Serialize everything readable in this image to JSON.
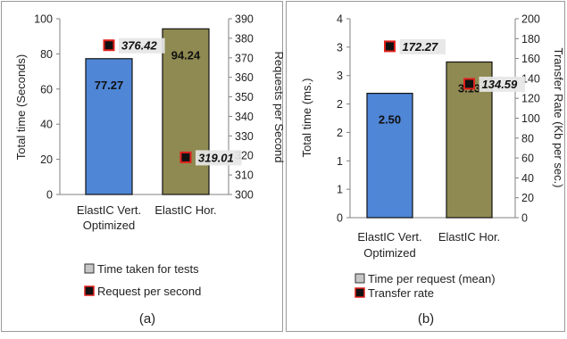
{
  "chart_data": [
    {
      "type": "bar",
      "caption": "(a)",
      "categories": [
        "ElastIC Vert. Optimized",
        "ElastIC Hor."
      ],
      "category_lines": [
        [
          "ElastIC Vert.",
          "Optimized"
        ],
        [
          "ElastIC Hor."
        ]
      ],
      "series": [
        {
          "name": "Time taken for tests",
          "axis": "left",
          "kind": "bar",
          "values": [
            77.27,
            94.24
          ],
          "labels": [
            "77.27",
            "94.24"
          ],
          "colors": [
            "#4f86d6",
            "#8f8a52"
          ]
        },
        {
          "name": "Request per second",
          "axis": "right",
          "kind": "point",
          "values": [
            376.42,
            319.01
          ],
          "labels": [
            "376.42",
            "319.01"
          ],
          "color": "#e0201b"
        }
      ],
      "ylabel": "Total time (Seconds)",
      "y2label": "Requests per Second",
      "ylim": [
        0,
        100
      ],
      "yticks": [
        "0",
        "20",
        "40",
        "60",
        "80",
        "100"
      ],
      "y2lim": [
        300,
        390
      ],
      "y2ticks": [
        "300",
        "310",
        "320",
        "330",
        "340",
        "350",
        "360",
        "370",
        "380",
        "390"
      ],
      "legend": {
        "position": "bottom",
        "entries": [
          "Time taken for tests",
          "Request per second"
        ]
      }
    },
    {
      "type": "bar",
      "caption": "(b)",
      "categories": [
        "ElastIC Vert. Optimized",
        "ElastIC Hor."
      ],
      "category_lines": [
        [
          "ElastIC Vert.",
          "Optimized"
        ],
        [
          "ElastIC Hor."
        ]
      ],
      "series": [
        {
          "name": "Time per request (mean)",
          "axis": "left",
          "kind": "bar",
          "values": [
            2.5,
            3.13
          ],
          "labels": [
            "2.50",
            "3.13"
          ],
          "colors": [
            "#4f86d6",
            "#8f8a52"
          ]
        },
        {
          "name": "Transfer rate",
          "axis": "right",
          "kind": "point",
          "values": [
            172.27,
            134.59
          ],
          "labels": [
            "172.27",
            "134.59"
          ],
          "color": "#e0201b"
        }
      ],
      "ylabel": "Total time (ms.)",
      "y2label": "Transfer Rate (Kb per sec.)",
      "ylim": [
        0,
        4
      ],
      "yticks": [
        "0",
        "1",
        "1",
        "2",
        "2",
        "3",
        "3",
        "4"
      ],
      "y2lim": [
        0,
        200
      ],
      "y2ticks": [
        "0",
        "20",
        "40",
        "60",
        "80",
        "100",
        "120",
        "140",
        "160",
        "180",
        "200"
      ],
      "legend": {
        "position": "bottom",
        "entries": [
          "Time per request (mean)",
          "Transfer rate"
        ]
      }
    }
  ]
}
